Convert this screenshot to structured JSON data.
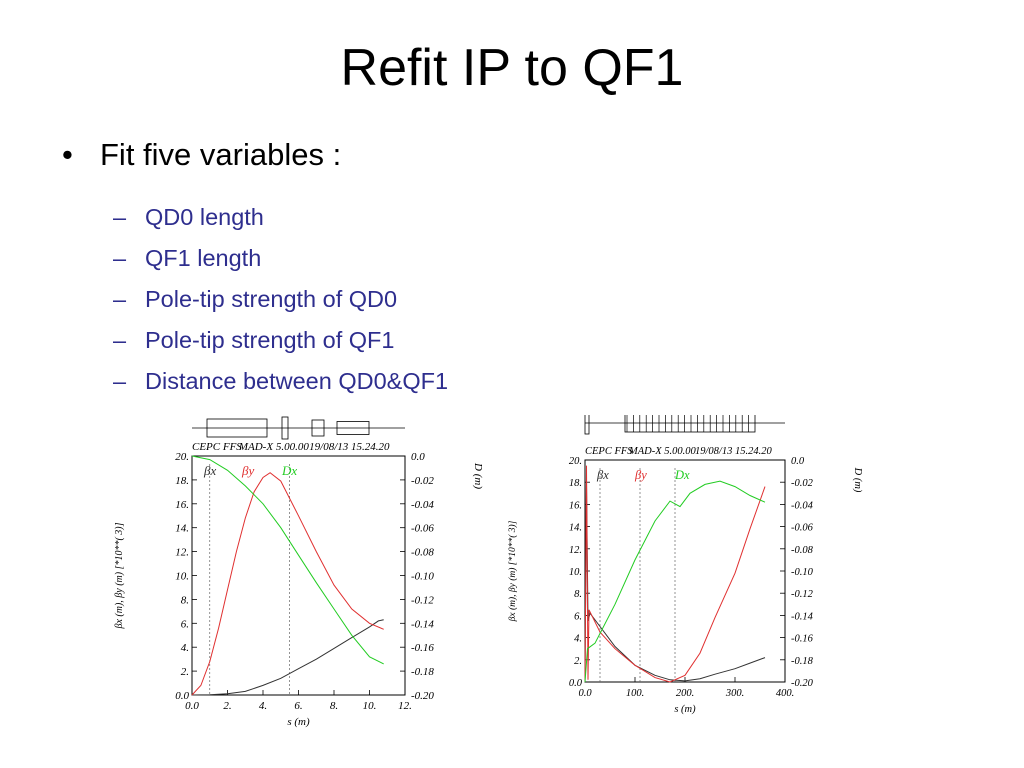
{
  "slide": {
    "title": "Refit IP to QF1",
    "bullet": {
      "marker": "•",
      "text": "Fit five variables :"
    },
    "sub_items": [
      {
        "marker": "–",
        "text": "QD0 length"
      },
      {
        "marker": "–",
        "text": "QF1 length"
      },
      {
        "marker": "–",
        "text": "Pole-tip strength of QD0"
      },
      {
        "marker": "–",
        "text": "Pole-tip strength of QF1"
      },
      {
        "marker": "–",
        "text": "Distance between QD0&QF1"
      }
    ],
    "colors": {
      "sub_text": "#2e2e8e",
      "beta_x": "#333333",
      "beta_y": "#e03030",
      "dispersion": "#22cc22"
    }
  },
  "chart_data": [
    {
      "type": "line",
      "header": "CEPC FFS",
      "header2": "MAD-X 5.00.00",
      "header3": "19/08/13 15.24.20",
      "xlabel": "s (m)",
      "ylabel_left": "βx (m), βy (m)   [*10**(  3)]",
      "ylabel_right": "D (m)",
      "xlim": [
        0,
        12
      ],
      "ylim_left": [
        0,
        20
      ],
      "ylim_right": [
        -0.2,
        0.0
      ],
      "x_ticks": [
        "0.0",
        "2.",
        "4.",
        "6.",
        "8.",
        "10.",
        "12."
      ],
      "y_left_ticks": [
        "0.0",
        "2.",
        "4.",
        "6.",
        "8.",
        "10.",
        "12.",
        "14.",
        "16.",
        "18.",
        "20."
      ],
      "y_right_ticks": [
        "0.0",
        "-0.02",
        "-0.04",
        "-0.06",
        "-0.08",
        "-0.10",
        "-0.12",
        "-0.14",
        "-0.16",
        "-0.18",
        "-0.20"
      ],
      "legend": [
        "βx",
        "βy",
        "Dx"
      ],
      "series": [
        {
          "name": "βx",
          "axis": "left",
          "points": [
            [
              0,
              0
            ],
            [
              1,
              0.02
            ],
            [
              2,
              0.1
            ],
            [
              3,
              0.3
            ],
            [
              4,
              0.8
            ],
            [
              5,
              1.4
            ],
            [
              6,
              2.2
            ],
            [
              7,
              3.0
            ],
            [
              8,
              3.9
            ],
            [
              9,
              4.8
            ],
            [
              10,
              5.7
            ],
            [
              10.5,
              6.2
            ],
            [
              10.8,
              6.3
            ]
          ]
        },
        {
          "name": "βy",
          "axis": "left",
          "points": [
            [
              0,
              0
            ],
            [
              0.5,
              0.8
            ],
            [
              1,
              2.8
            ],
            [
              1.5,
              5.6
            ],
            [
              2,
              8.8
            ],
            [
              2.5,
              12.0
            ],
            [
              3,
              14.8
            ],
            [
              3.5,
              17.0
            ],
            [
              4,
              18.2
            ],
            [
              4.4,
              18.6
            ],
            [
              5,
              17.9
            ],
            [
              6,
              15.0
            ],
            [
              7,
              12.0
            ],
            [
              8,
              9.2
            ],
            [
              9,
              7.2
            ],
            [
              10,
              6.0
            ],
            [
              10.8,
              5.5
            ]
          ]
        },
        {
          "name": "Dx",
          "axis": "right",
          "points": [
            [
              0,
              0.0
            ],
            [
              1,
              -0.003
            ],
            [
              2,
              -0.012
            ],
            [
              3,
              -0.025
            ],
            [
              4,
              -0.04
            ],
            [
              5,
              -0.06
            ],
            [
              6,
              -0.083
            ],
            [
              7,
              -0.106
            ],
            [
              8,
              -0.128
            ],
            [
              9,
              -0.15
            ],
            [
              10,
              -0.168
            ],
            [
              10.8,
              -0.174
            ]
          ]
        }
      ],
      "markers_x": [
        1.0,
        5.5
      ]
    },
    {
      "type": "line",
      "header": "CEPC FFS",
      "header2": "MAD-X 5.00.00",
      "header3": "19/08/13 15.24.20",
      "xlabel": "s (m)",
      "ylabel_left": "βx (m), βy (m)   [*10**(  3)]",
      "ylabel_right": "D (m)",
      "xlim": [
        0,
        400
      ],
      "ylim_left": [
        0,
        20
      ],
      "ylim_right": [
        -0.2,
        0.0
      ],
      "x_ticks": [
        "0.0",
        "100.",
        "200.",
        "300.",
        "400."
      ],
      "y_left_ticks": [
        "0.0",
        "2.",
        "4.",
        "6.",
        "8.",
        "10.",
        "12.",
        "14.",
        "16.",
        "18.",
        "20."
      ],
      "y_right_ticks": [
        "0.0",
        "-0.02",
        "-0.04",
        "-0.06",
        "-0.08",
        "-0.10",
        "-0.12",
        "-0.14",
        "-0.16",
        "-0.18",
        "-0.20"
      ],
      "legend": [
        "βx",
        "βy",
        "Dx"
      ],
      "series": [
        {
          "name": "βx",
          "axis": "left",
          "points": [
            [
              0,
              0
            ],
            [
              3,
              18
            ],
            [
              6,
              5.5
            ],
            [
              10,
              6.2
            ],
            [
              30,
              5.0
            ],
            [
              60,
              3.2
            ],
            [
              100,
              1.5
            ],
            [
              140,
              0.6
            ],
            [
              170,
              0.2
            ],
            [
              200,
              0.1
            ],
            [
              230,
              0.3
            ],
            [
              260,
              0.7
            ],
            [
              300,
              1.2
            ],
            [
              330,
              1.7
            ],
            [
              360,
              2.2
            ]
          ]
        },
        {
          "name": "βy",
          "axis": "left",
          "points": [
            [
              0,
              0
            ],
            [
              3,
              19.5
            ],
            [
              6,
              0.2
            ],
            [
              8,
              6.5
            ],
            [
              30,
              4.5
            ],
            [
              60,
              3.0
            ],
            [
              100,
              1.5
            ],
            [
              140,
              0.4
            ],
            [
              170,
              0.0
            ],
            [
              200,
              0.6
            ],
            [
              230,
              2.6
            ],
            [
              260,
              5.8
            ],
            [
              300,
              9.8
            ],
            [
              330,
              13.8
            ],
            [
              360,
              17.6
            ]
          ]
        },
        {
          "name": "Dx",
          "axis": "right",
          "points": [
            [
              0,
              -0.2
            ],
            [
              5,
              -0.17
            ],
            [
              20,
              -0.165
            ],
            [
              60,
              -0.13
            ],
            [
              100,
              -0.09
            ],
            [
              140,
              -0.055
            ],
            [
              170,
              -0.037
            ],
            [
              190,
              -0.042
            ],
            [
              210,
              -0.03
            ],
            [
              240,
              -0.022
            ],
            [
              270,
              -0.019
            ],
            [
              300,
              -0.024
            ],
            [
              330,
              -0.032
            ],
            [
              360,
              -0.038
            ]
          ]
        }
      ],
      "markers_x": [
        30,
        110,
        180
      ]
    }
  ]
}
